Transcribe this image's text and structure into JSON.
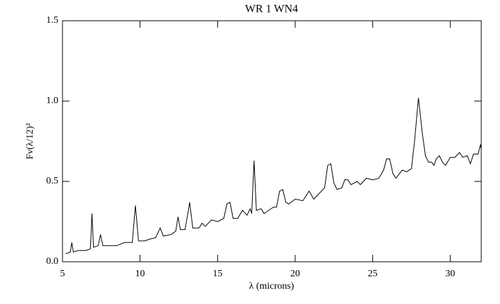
{
  "chart_data": {
    "type": "line",
    "title": "WR 1 WN4",
    "xlabel": "λ (microns)",
    "ylabel": "Fν(λ/12)²",
    "x": [
      5.2,
      5.5,
      5.6,
      5.7,
      6.0,
      6.5,
      6.8,
      6.9,
      7.0,
      7.3,
      7.45,
      7.6,
      8.0,
      8.5,
      9.0,
      9.5,
      9.7,
      9.9,
      10.3,
      10.6,
      11.0,
      11.3,
      11.5,
      12.0,
      12.3,
      12.45,
      12.6,
      12.9,
      13.1,
      13.2,
      13.4,
      13.8,
      14.0,
      14.2,
      14.6,
      15.0,
      15.4,
      15.6,
      15.8,
      16.0,
      16.3,
      16.6,
      16.9,
      17.1,
      17.2,
      17.35,
      17.5,
      17.8,
      18.0,
      18.3,
      18.6,
      18.8,
      19.0,
      19.2,
      19.4,
      19.6,
      20.0,
      20.5,
      20.9,
      21.2,
      21.6,
      21.9,
      22.1,
      22.3,
      22.5,
      22.7,
      23.0,
      23.2,
      23.4,
      23.6,
      24.0,
      24.2,
      24.6,
      25.0,
      25.4,
      25.7,
      25.9,
      26.1,
      26.3,
      26.5,
      26.9,
      27.2,
      27.5,
      27.7,
      27.95,
      28.2,
      28.4,
      28.6,
      28.8,
      28.95,
      29.1,
      29.3,
      29.5,
      29.7,
      30.0,
      30.3,
      30.6,
      30.8,
      31.1,
      31.3,
      31.5,
      31.8,
      31.95,
      32.0
    ],
    "series": [
      {
        "name": "WR 1 WN4",
        "color": "#000000",
        "values": [
          0.05,
          0.06,
          0.12,
          0.06,
          0.07,
          0.07,
          0.08,
          0.3,
          0.09,
          0.1,
          0.17,
          0.1,
          0.1,
          0.1,
          0.12,
          0.12,
          0.35,
          0.13,
          0.13,
          0.14,
          0.15,
          0.21,
          0.16,
          0.17,
          0.19,
          0.28,
          0.2,
          0.2,
          0.31,
          0.37,
          0.21,
          0.21,
          0.24,
          0.22,
          0.26,
          0.25,
          0.27,
          0.36,
          0.37,
          0.27,
          0.27,
          0.32,
          0.29,
          0.33,
          0.3,
          0.63,
          0.32,
          0.33,
          0.3,
          0.32,
          0.34,
          0.34,
          0.44,
          0.45,
          0.37,
          0.36,
          0.39,
          0.38,
          0.44,
          0.39,
          0.43,
          0.46,
          0.6,
          0.61,
          0.49,
          0.45,
          0.46,
          0.51,
          0.51,
          0.48,
          0.5,
          0.48,
          0.52,
          0.51,
          0.52,
          0.57,
          0.64,
          0.64,
          0.55,
          0.52,
          0.57,
          0.56,
          0.58,
          0.75,
          1.02,
          0.8,
          0.66,
          0.62,
          0.62,
          0.6,
          0.64,
          0.66,
          0.62,
          0.6,
          0.65,
          0.65,
          0.68,
          0.65,
          0.66,
          0.61,
          0.67,
          0.67,
          0.73,
          0.7
        ]
      }
    ],
    "xlim": [
      5,
      32
    ],
    "xticks": [
      5,
      10,
      15,
      20,
      25,
      30
    ],
    "ylim": [
      0,
      1.5
    ],
    "yticks": [
      {
        "value": 0,
        "label": "0.0"
      },
      0.5,
      {
        "value": 1,
        "label": "1.0"
      },
      1.5
    ],
    "grid": false
  }
}
